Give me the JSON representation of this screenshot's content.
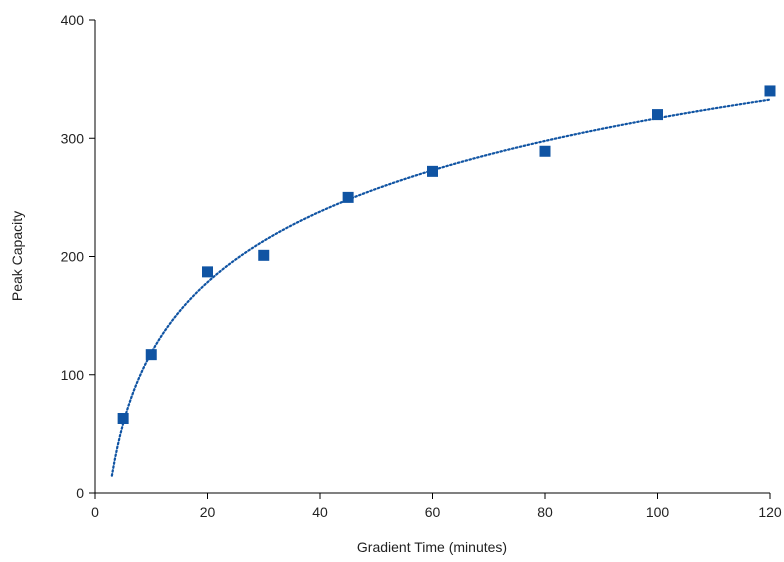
{
  "colors": {
    "series": "#1054a3",
    "axis": "#000000",
    "text": "#222222"
  },
  "chart_data": {
    "type": "scatter",
    "title": "",
    "xlabel": "Gradient Time (minutes)",
    "ylabel": "Peak Capacity",
    "xlim": [
      0,
      120
    ],
    "ylim": [
      0,
      400
    ],
    "x_ticks": [
      "0",
      "20",
      "40",
      "60",
      "80",
      "100",
      "120"
    ],
    "y_ticks": [
      "0",
      "100",
      "200",
      "300",
      "400"
    ],
    "grid": false,
    "legend": "none",
    "series": [
      {
        "marker": "square",
        "x": [
          5,
          10,
          20,
          30,
          45,
          60,
          80,
          100,
          120
        ],
        "y": [
          63,
          117,
          187,
          201,
          250,
          272,
          289,
          320,
          340
        ]
      }
    ],
    "trendline": {
      "type": "logarithmic",
      "style": "dotted",
      "x_range": [
        3,
        120
      ],
      "equation": "y = 86.2 ln(x) - 80"
    }
  }
}
